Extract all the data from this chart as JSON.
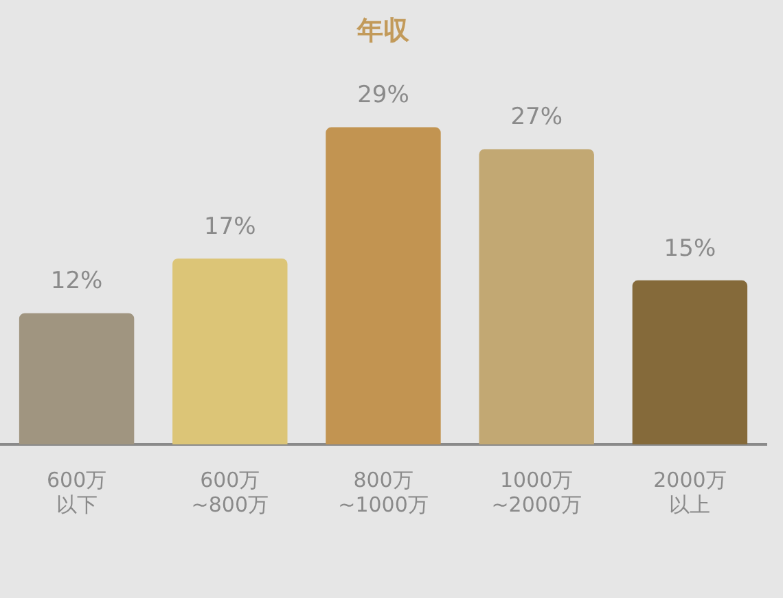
{
  "chart_data": {
    "type": "bar",
    "title": "年収",
    "categories": [
      "600万以下",
      "600万\n~800万",
      "800万\n~1000万",
      "1000万\n~2000万",
      "2000万以上"
    ],
    "values": [
      12,
      17,
      29,
      27,
      15
    ],
    "colors": [
      "#a09580",
      "#dcc577",
      "#c29451",
      "#c2a873",
      "#856a3a"
    ],
    "value_labels": [
      "12%",
      "17%",
      "29%",
      "27%",
      "15%"
    ],
    "grid": false,
    "legend": false
  }
}
